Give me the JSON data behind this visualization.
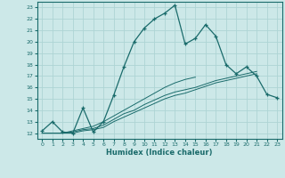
{
  "x_values": [
    0,
    1,
    2,
    3,
    4,
    5,
    6,
    7,
    8,
    9,
    10,
    11,
    12,
    13,
    14,
    15,
    16,
    17,
    18,
    19,
    20,
    21,
    22,
    23
  ],
  "line1_y": [
    12.2,
    13.0,
    12.1,
    12.0,
    14.2,
    12.1,
    13.0,
    15.3,
    17.8,
    20.0,
    21.2,
    22.0,
    22.5,
    23.2,
    19.8,
    20.3,
    21.5,
    20.5,
    18.0,
    17.2,
    17.8,
    17.0,
    15.4,
    15.1
  ],
  "line2_y": [
    12.0,
    12.0,
    12.0,
    12.0,
    12.2,
    12.3,
    12.5,
    13.0,
    13.4,
    13.8,
    14.2,
    14.6,
    15.0,
    15.3,
    15.5,
    15.8,
    16.1,
    16.4,
    16.6,
    16.8,
    17.0,
    17.2,
    null,
    null
  ],
  "line3_y": [
    12.0,
    12.0,
    12.0,
    12.1,
    12.3,
    12.4,
    12.7,
    13.2,
    13.7,
    14.0,
    14.5,
    14.9,
    15.3,
    15.6,
    15.8,
    16.0,
    16.3,
    16.6,
    16.8,
    17.0,
    17.2,
    17.4,
    null,
    null
  ],
  "line4_y": [
    12.0,
    12.0,
    12.0,
    12.2,
    12.4,
    12.6,
    13.0,
    13.5,
    14.0,
    14.5,
    15.0,
    15.5,
    16.0,
    16.4,
    16.7,
    16.9,
    null,
    null,
    null,
    null,
    null,
    null,
    null,
    null
  ],
  "bg_color": "#cce8e8",
  "grid_color": "#aed4d4",
  "line_color": "#1a6b6b",
  "xlabel": "Humidex (Indice chaleur)",
  "ylim": [
    11.5,
    23.5
  ],
  "xlim": [
    -0.5,
    23.5
  ],
  "yticks": [
    12,
    13,
    14,
    15,
    16,
    17,
    18,
    19,
    20,
    21,
    22,
    23
  ],
  "xticks": [
    0,
    1,
    2,
    3,
    4,
    5,
    6,
    7,
    8,
    9,
    10,
    11,
    12,
    13,
    14,
    15,
    16,
    17,
    18,
    19,
    20,
    21,
    22,
    23
  ]
}
